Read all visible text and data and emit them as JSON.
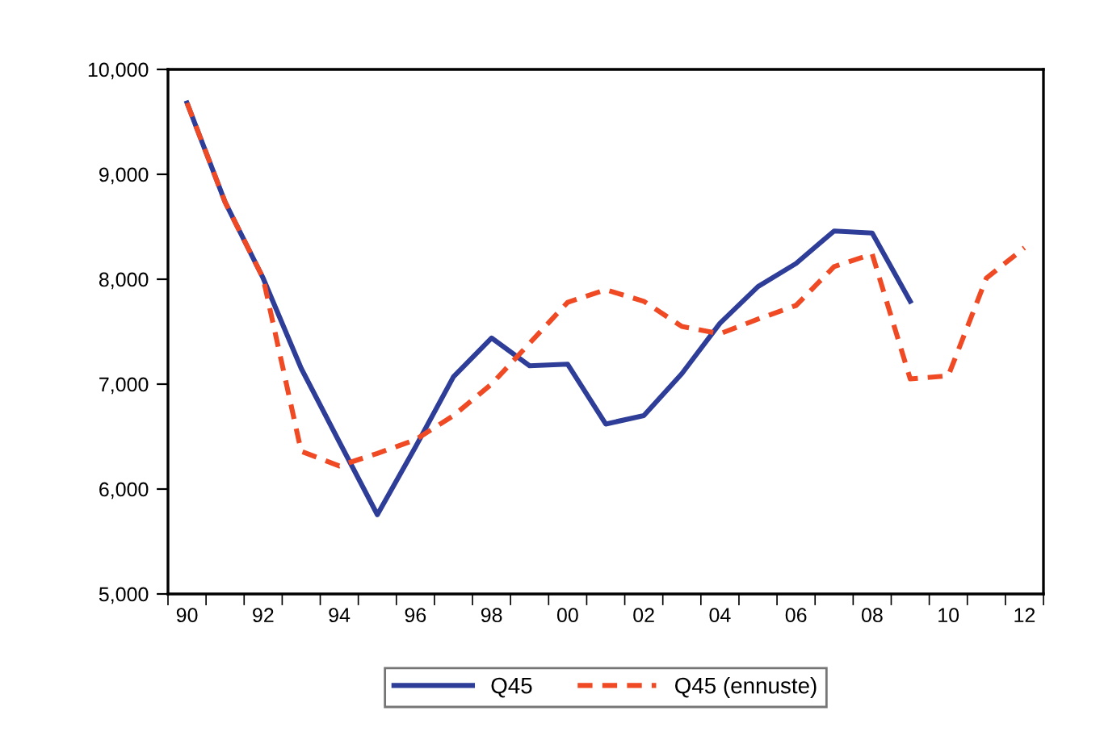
{
  "chart_data": {
    "type": "line",
    "categories": [
      "90",
      null,
      "92",
      null,
      "94",
      null,
      "96",
      null,
      "98",
      null,
      "00",
      null,
      "02",
      null,
      "04",
      null,
      "06",
      null,
      "08",
      null,
      "10",
      null,
      "12"
    ],
    "series": [
      {
        "name": "Q45",
        "color": "#2e3d98",
        "line_style": "solid",
        "values": [
          9680,
          8735,
          8010,
          7150,
          6450,
          5756,
          6400,
          7070,
          7440,
          7175,
          7190,
          6620,
          6700,
          7100,
          7580,
          7930,
          8150,
          8460,
          8440,
          7790,
          null,
          null,
          null
        ]
      },
      {
        "name": "Q45 (ennuste)",
        "color": "#f04a25",
        "line_style": "dashed",
        "values": [
          9680,
          8735,
          8010,
          6360,
          6220,
          6340,
          6470,
          6700,
          7000,
          7390,
          7780,
          7900,
          7790,
          7550,
          7480,
          7620,
          7750,
          8120,
          8240,
          7050,
          7080,
          8010,
          8300
        ]
      }
    ],
    "ylim": [
      5000,
      10000
    ],
    "yticks": [
      {
        "value": 5000,
        "label": "5,000"
      },
      {
        "value": 6000,
        "label": "6,000"
      },
      {
        "value": 7000,
        "label": "7,000"
      },
      {
        "value": 8000,
        "label": "8,000"
      },
      {
        "value": 9000,
        "label": "9,000"
      },
      {
        "value": 10000,
        "label": "10,000"
      }
    ],
    "grid": false,
    "legend": "bottom",
    "marker": "none"
  }
}
